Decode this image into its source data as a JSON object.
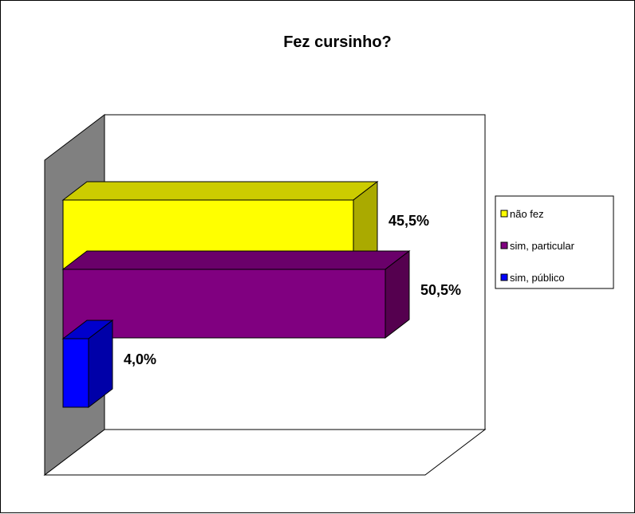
{
  "chart_data": {
    "type": "bar",
    "orientation": "horizontal",
    "three_d": true,
    "title": "Fez cursinho?",
    "xlabel": "",
    "ylabel": "",
    "xlim": [
      0,
      55
    ],
    "grid": false,
    "legend_position": "right",
    "series": [
      {
        "name": "não fez",
        "value": 45.5,
        "label": "45,5%",
        "color": "#FFFF00",
        "top_color": "#CCCC00",
        "side_color": "#AAAA00"
      },
      {
        "name": "sim, particular",
        "value": 50.5,
        "label": "50,5%",
        "color": "#800080",
        "top_color": "#6A006A",
        "side_color": "#55004F"
      },
      {
        "name": "sim, público",
        "value": 4.0,
        "label": "4,0%",
        "color": "#0000FF",
        "top_color": "#0000CC",
        "side_color": "#0000A8"
      }
    ],
    "wall_color": "#808080"
  }
}
